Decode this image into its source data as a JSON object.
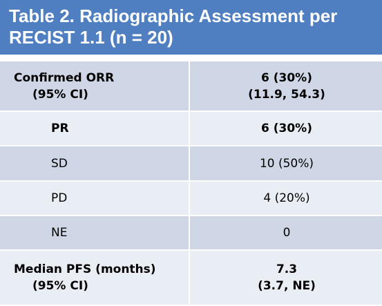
{
  "table": {
    "title_line1": "Table 2. Radiographic Assessment per",
    "title_line2": "RECIST 1.1 (n = 20)",
    "rows": [
      {
        "label": "Confirmed ORR",
        "sublabel": "(95% CI)",
        "value": "6 (30%)",
        "subvalue": "(11.9, 54.3)"
      },
      {
        "label": "PR",
        "value": "6 (30%)"
      },
      {
        "label": "SD",
        "value": "10 (50%)"
      },
      {
        "label": "PD",
        "value": "4 (20%)"
      },
      {
        "label": "NE",
        "value": "0"
      },
      {
        "label": "Median PFS (months)",
        "sublabel": "(95% CI)",
        "value": "7.3",
        "subvalue": "(3.7, NE)"
      }
    ]
  },
  "colors": {
    "header_bg": "#4f7fc0",
    "row_dark": "#cfd7e6",
    "row_light": "#e9edf4"
  }
}
